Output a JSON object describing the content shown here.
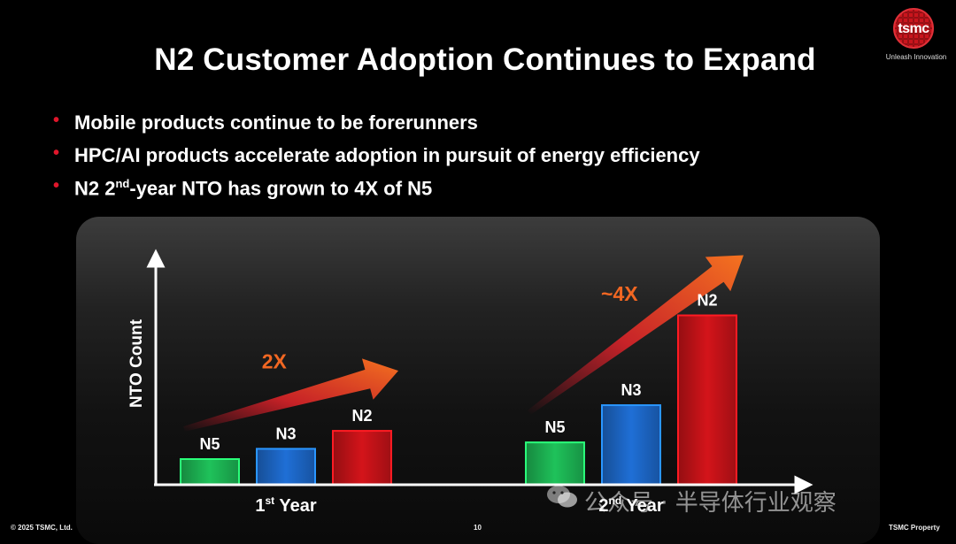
{
  "slide": {
    "title": "N2 Customer Adoption Continues to Expand",
    "bullets": [
      {
        "pre": "Mobile products continue to be forerunners",
        "sup": "",
        "post": ""
      },
      {
        "pre": "HPC/AI products accelerate adoption in pursuit of energy efficiency",
        "sup": "",
        "post": ""
      },
      {
        "pre": "N2 2",
        "sup": "nd",
        "post": "-year NTO has grown to 4X of N5"
      }
    ],
    "bullet_glyph": "•"
  },
  "logo": {
    "word": "tsmc",
    "tagline": "Unleash Innovation"
  },
  "footer": {
    "copyright": "© 2025 TSMC, Ltd.",
    "page": "10",
    "property": "TSMC Property"
  },
  "watermark": {
    "text": "公众号 · 半导体行业观察"
  },
  "chart_data": {
    "type": "bar",
    "ylabel": "NTO Count",
    "categories": [
      {
        "pre": "1",
        "sup": "st",
        "post": " Year"
      },
      {
        "pre": "2",
        "sup": "nd",
        "post": " Year"
      }
    ],
    "series": [
      {
        "name": "N5",
        "color": "#1fc25a",
        "values": [
          1,
          1.65
        ]
      },
      {
        "name": "N3",
        "color": "#1f6fd6",
        "values": [
          1.4,
          3.1
        ]
      },
      {
        "name": "N2",
        "color": "#d4141a",
        "values": [
          2.1,
          6.6
        ]
      }
    ],
    "ylim": [
      0,
      9.1
    ],
    "annotations": [
      {
        "category_index": 0,
        "text": "2X",
        "color": "#f26722"
      },
      {
        "category_index": 1,
        "text": "~4X",
        "color": "#f26722"
      }
    ],
    "grid": false,
    "legend": "none"
  }
}
